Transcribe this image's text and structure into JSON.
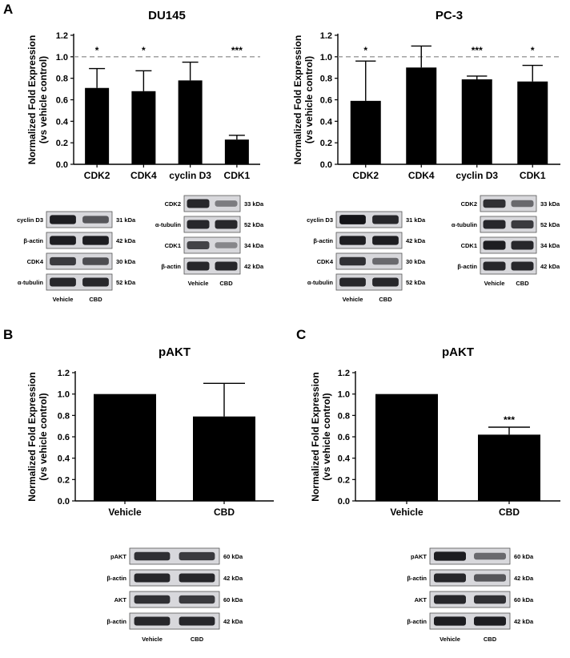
{
  "panels": {
    "a": "A",
    "b": "B",
    "c": "C"
  },
  "chart_data": [
    {
      "type": "bar",
      "id": "du145",
      "title": "DU145",
      "ylabel_line1": "Normalized Fold Expression",
      "ylabel_line2": "(vs vehicle control)",
      "categories": [
        "CDK2",
        "CDK4",
        "cyclin D3",
        "CDK1"
      ],
      "values": [
        0.71,
        0.68,
        0.78,
        0.23
      ],
      "errors": [
        0.18,
        0.19,
        0.17,
        0.04
      ],
      "significance": [
        "*",
        "*",
        "",
        "***"
      ],
      "ylim": [
        0,
        1.2
      ],
      "yticks": [
        "0.0",
        "0.2",
        "0.4",
        "0.6",
        "0.8",
        "1.0",
        "1.2"
      ],
      "reference_line": 1.0
    },
    {
      "type": "bar",
      "id": "pc3",
      "title": "PC-3",
      "ylabel_line1": "Normalized Fold Expression",
      "ylabel_line2": "(vs vehicle control)",
      "categories": [
        "CDK2",
        "CDK4",
        "cyclin D3",
        "CDK1"
      ],
      "values": [
        0.59,
        0.9,
        0.79,
        0.77
      ],
      "errors": [
        0.37,
        0.2,
        0.03,
        0.15
      ],
      "significance": [
        "*",
        "",
        "***",
        "*"
      ],
      "ylim": [
        0,
        1.2
      ],
      "yticks": [
        "0.0",
        "0.2",
        "0.4",
        "0.6",
        "0.8",
        "1.0",
        "1.2"
      ],
      "reference_line": 1.0
    },
    {
      "type": "bar",
      "id": "pakt_b",
      "title": "pAKT",
      "ylabel_line1": "Normalized Fold Expression",
      "ylabel_line2": "(vs vehicle control)",
      "categories": [
        "Vehicle",
        "CBD"
      ],
      "values": [
        1.0,
        0.79
      ],
      "errors": [
        0,
        0.31
      ],
      "significance": [
        "",
        ""
      ],
      "ylim": [
        0,
        1.2
      ],
      "yticks": [
        "0.0",
        "0.2",
        "0.4",
        "0.6",
        "0.8",
        "1.0",
        "1.2"
      ]
    },
    {
      "type": "bar",
      "id": "pakt_c",
      "title": "pAKT",
      "ylabel_line1": "Normalized Fold Expression",
      "ylabel_line2": "(vs vehicle control)",
      "categories": [
        "Vehicle",
        "CBD"
      ],
      "values": [
        1.0,
        0.62
      ],
      "errors": [
        0,
        0.07
      ],
      "significance": [
        "",
        "***"
      ],
      "ylim": [
        0,
        1.2
      ],
      "yticks": [
        "0.0",
        "0.2",
        "0.4",
        "0.6",
        "0.8",
        "1.0",
        "1.2"
      ]
    }
  ],
  "blots": {
    "lanes": [
      "Vehicle",
      "CBD"
    ],
    "du145_left": [
      {
        "label": "cyclin D3",
        "kda": "31 kDa",
        "band": [
          0.9,
          0.6
        ]
      },
      {
        "label": "β-actin",
        "kda": "42 kDa",
        "band": [
          0.9,
          0.9
        ]
      },
      {
        "label": "CDK4",
        "kda": "30 kDa",
        "band": [
          0.75,
          0.65
        ]
      },
      {
        "label": "α-tubulin",
        "kda": "52 kDa",
        "band": [
          0.85,
          0.85
        ]
      }
    ],
    "du145_right": [
      {
        "label": "CDK2",
        "kda": "33 kDa",
        "band": [
          0.85,
          0.4
        ]
      },
      {
        "label": "α-tubulin",
        "kda": "52 kDa",
        "band": [
          0.85,
          0.85
        ]
      },
      {
        "label": "CDK1",
        "kda": "34 kDa",
        "band": [
          0.7,
          0.35
        ]
      },
      {
        "label": "β-actin",
        "kda": "42 kDa",
        "band": [
          0.85,
          0.85
        ]
      }
    ],
    "pc3_left": [
      {
        "label": "cyclin D3",
        "kda": "31 kDa",
        "band": [
          0.95,
          0.85
        ]
      },
      {
        "label": "β-actin",
        "kda": "42 kDa",
        "band": [
          0.9,
          0.9
        ]
      },
      {
        "label": "CDK4",
        "kda": "30 kDa",
        "band": [
          0.8,
          0.5
        ]
      },
      {
        "label": "α-tubulin",
        "kda": "52 kDa",
        "band": [
          0.85,
          0.85
        ]
      }
    ],
    "pc3_right": [
      {
        "label": "CDK2",
        "kda": "33 kDa",
        "band": [
          0.8,
          0.5
        ]
      },
      {
        "label": "α-tubulin",
        "kda": "52 kDa",
        "band": [
          0.85,
          0.75
        ]
      },
      {
        "label": "CDK1",
        "kda": "34 kDa",
        "band": [
          0.9,
          0.85
        ]
      },
      {
        "label": "β-actin",
        "kda": "42 kDa",
        "band": [
          0.85,
          0.85
        ]
      }
    ],
    "b": [
      {
        "label": "pAKT",
        "kda": "60 kDa",
        "band": [
          0.8,
          0.75
        ]
      },
      {
        "label": "β-actin",
        "kda": "42 kDa",
        "band": [
          0.85,
          0.85
        ]
      },
      {
        "label": "AKT",
        "kda": "60 kDa",
        "band": [
          0.8,
          0.75
        ]
      },
      {
        "label": "β-actin",
        "kda": "42 kDa",
        "band": [
          0.85,
          0.85
        ]
      }
    ],
    "c": [
      {
        "label": "pAKT",
        "kda": "60 kDa",
        "band": [
          0.9,
          0.5
        ]
      },
      {
        "label": "β-actin",
        "kda": "42 kDa",
        "band": [
          0.85,
          0.6
        ]
      },
      {
        "label": "AKT",
        "kda": "60 kDa",
        "band": [
          0.85,
          0.8
        ]
      },
      {
        "label": "β-actin",
        "kda": "42 kDa",
        "band": [
          0.9,
          0.9
        ]
      }
    ]
  }
}
